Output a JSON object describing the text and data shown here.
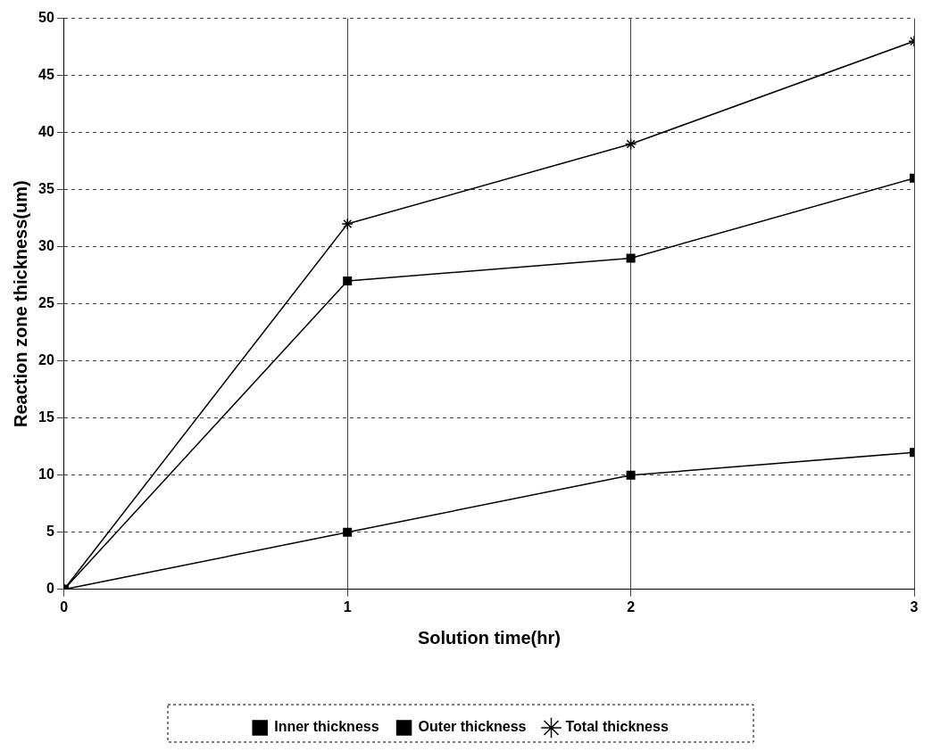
{
  "chart_data": {
    "type": "line",
    "xlabel": "Solution time(hr)",
    "ylabel": "Reaction zone thickness(um)",
    "x": [
      0,
      1,
      2,
      3
    ],
    "series": [
      {
        "name": "Inner thickness",
        "color": "#000000",
        "values": [
          0,
          5,
          10,
          12
        ],
        "marker": "square"
      },
      {
        "name": "Outer thickness",
        "color": "#000000",
        "values": [
          0,
          27,
          29,
          36
        ],
        "marker": "square"
      },
      {
        "name": "Total thickness",
        "color": "#000000",
        "values": [
          0,
          32,
          39,
          48
        ],
        "marker": "cross"
      }
    ],
    "xlim": [
      0,
      3
    ],
    "xticks": [
      0,
      1,
      2,
      3
    ],
    "ylim": [
      0,
      50
    ],
    "yticks": [
      0,
      5,
      10,
      15,
      20,
      25,
      30,
      35,
      40,
      45,
      50
    ],
    "grid": true,
    "legend": "bottom",
    "line_style": "solid"
  }
}
